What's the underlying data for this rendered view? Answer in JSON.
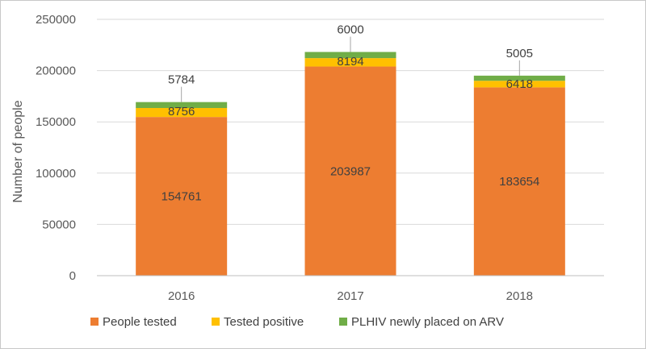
{
  "chart_data": {
    "type": "bar",
    "stacked": true,
    "categories": [
      "2016",
      "2017",
      "2018"
    ],
    "series": [
      {
        "name": "People tested",
        "values": [
          154761,
          203987,
          183654
        ],
        "color": "#ED7D31"
      },
      {
        "name": "Tested positive",
        "values": [
          8756,
          8194,
          6418
        ],
        "color": "#FFC000"
      },
      {
        "name": "PLHIV newly placed on ARV",
        "values": [
          5784,
          6000,
          5005
        ],
        "color": "#70AD47"
      }
    ],
    "ylabel": "Number of people",
    "ylim": [
      0,
      250000
    ],
    "yticks": [
      0,
      50000,
      100000,
      150000,
      200000,
      250000
    ],
    "grid": true,
    "legend": "bottom"
  }
}
